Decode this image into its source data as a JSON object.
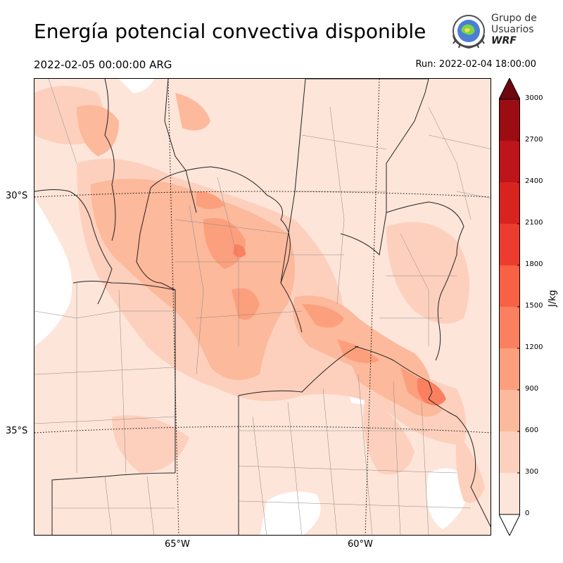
{
  "header": {
    "title": "Energía potencial convectiva disponible",
    "valid_time": "2022-02-05 00:00:00 ARG",
    "run_time": "Run: 2022-02-04 18:00:00"
  },
  "logo": {
    "line1": "Grupo de",
    "line2": "Usuarios",
    "line3": "WRF"
  },
  "map": {
    "lat_labels": [
      "30°S",
      "35°S"
    ],
    "lon_labels": [
      "65°W",
      "60°W"
    ]
  },
  "colorbar": {
    "unit": "J/kg",
    "ticks": [
      "0",
      "300",
      "600",
      "900",
      "1200",
      "1500",
      "1800",
      "2100",
      "2400",
      "2700",
      "3000"
    ],
    "colors": [
      "#fee5d9",
      "#fdd0bd",
      "#fcb99b",
      "#fc9f7c",
      "#fb8060",
      "#f86143",
      "#ec3c2f",
      "#d8241f",
      "#be151a",
      "#9b0c13",
      "#700610"
    ]
  }
}
